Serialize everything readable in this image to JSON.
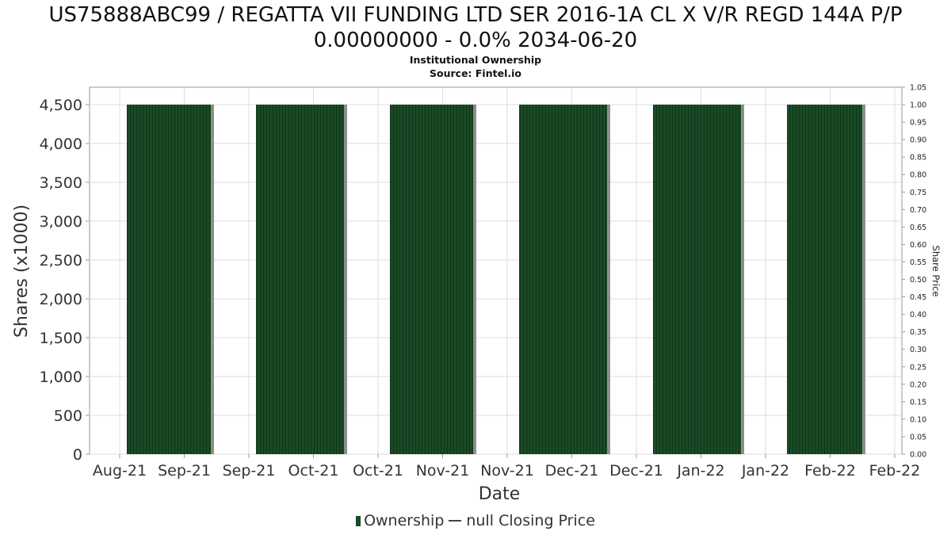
{
  "header": {
    "title_line1": "US75888ABC99 / REGATTA VII FUNDING LTD SER 2016-1A CL X V/R REGD 144A P/P",
    "title_line2": "0.00000000 - 0.0% 2034-06-20",
    "subtitle": "Institutional Ownership",
    "source": "Source: Fintel.io"
  },
  "legend": {
    "ownership_label": "Ownership",
    "price_label": "null Closing Price"
  },
  "colors": {
    "bar_fill": "#1a4a25",
    "bar_stripe": "#0f3318",
    "bar_edge": "#8a8f8a",
    "grid": "#dddddd",
    "axis": "#999999"
  },
  "chart_data": {
    "type": "bar",
    "title": "",
    "xlabel": "Date",
    "ylabel": "Shares (x1000)",
    "y2label": "Share Price",
    "x_tick_labels": [
      "Aug-21",
      "Sep-21",
      "Sep-21",
      "Oct-21",
      "Oct-21",
      "Nov-21",
      "Nov-21",
      "Dec-21",
      "Dec-21",
      "Jan-22",
      "Jan-22",
      "Feb-22",
      "Feb-22"
    ],
    "y_ticks": [
      0,
      500,
      1000,
      1500,
      2000,
      2500,
      3000,
      3500,
      4000,
      4500
    ],
    "y_tick_labels": [
      "0",
      "500",
      "1,000",
      "1,500",
      "2,000",
      "2,500",
      "3,000",
      "3,500",
      "4,000",
      "4,500"
    ],
    "ylim": [
      0,
      4725
    ],
    "y2_ticks": [
      "0.00",
      "0.05",
      "0.10",
      "0.15",
      "0.20",
      "0.25",
      "0.30",
      "0.35",
      "0.40",
      "0.45",
      "0.50",
      "0.55",
      "0.60",
      "0.65",
      "0.70",
      "0.75",
      "0.80",
      "0.85",
      "0.90",
      "0.95",
      "1.00",
      "1.05"
    ],
    "y2lim": [
      0,
      1.05
    ],
    "xlim": [
      "2021-08-16",
      "2022-02-28"
    ],
    "grid": true,
    "legend_position": "bottom",
    "series": [
      {
        "name": "Ownership",
        "blocks": [
          {
            "start": "2021-08-19",
            "end": "2021-09-17",
            "value": 4500
          },
          {
            "start": "2021-10-01",
            "end": "2021-10-31",
            "value": 4500
          },
          {
            "start": "2021-11-15",
            "end": "2021-12-14",
            "value": 4500
          },
          {
            "start": "2021-12-29",
            "end": "2022-01-28",
            "value": 4500
          },
          {
            "start": "2022-02-11",
            "end": "2022-03-13",
            "value": 4500
          },
          {
            "start": "2022-03-28",
            "end": "2022-04-24",
            "value": 4500
          }
        ]
      }
    ]
  }
}
